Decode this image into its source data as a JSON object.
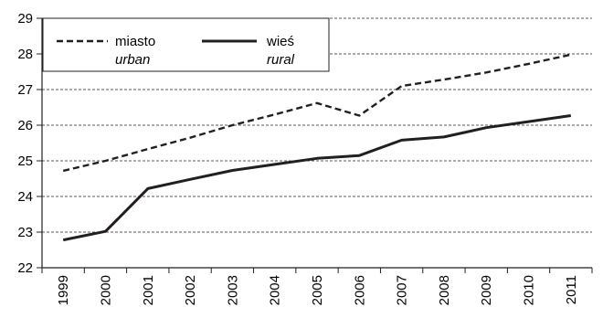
{
  "chart_data": {
    "type": "line",
    "title": "",
    "xlabel": "",
    "ylabel": "",
    "categories": [
      "1999",
      "2000",
      "2001",
      "2002",
      "2003",
      "2004",
      "2005",
      "2006",
      "2007",
      "2008",
      "2009",
      "2010",
      "2011"
    ],
    "ylim": [
      22,
      29
    ],
    "yticks": [
      22,
      23,
      24,
      25,
      26,
      27,
      28,
      29
    ],
    "grid": "horizontal dashed",
    "legend_placement": "top-left",
    "series": [
      {
        "name": "miasto",
        "subname": "urban",
        "style": "dashed",
        "color": "#231f20",
        "values": [
          24.72,
          25.0,
          25.33,
          25.65,
          26.0,
          26.3,
          26.62,
          26.27,
          27.1,
          27.28,
          27.48,
          27.72,
          27.98
        ]
      },
      {
        "name": "wieś",
        "subname": "rural",
        "style": "solid",
        "color": "#231f20",
        "values": [
          22.78,
          23.02,
          24.22,
          24.48,
          24.73,
          24.9,
          25.07,
          25.15,
          25.58,
          25.67,
          25.93,
          26.1,
          26.27
        ]
      }
    ]
  }
}
